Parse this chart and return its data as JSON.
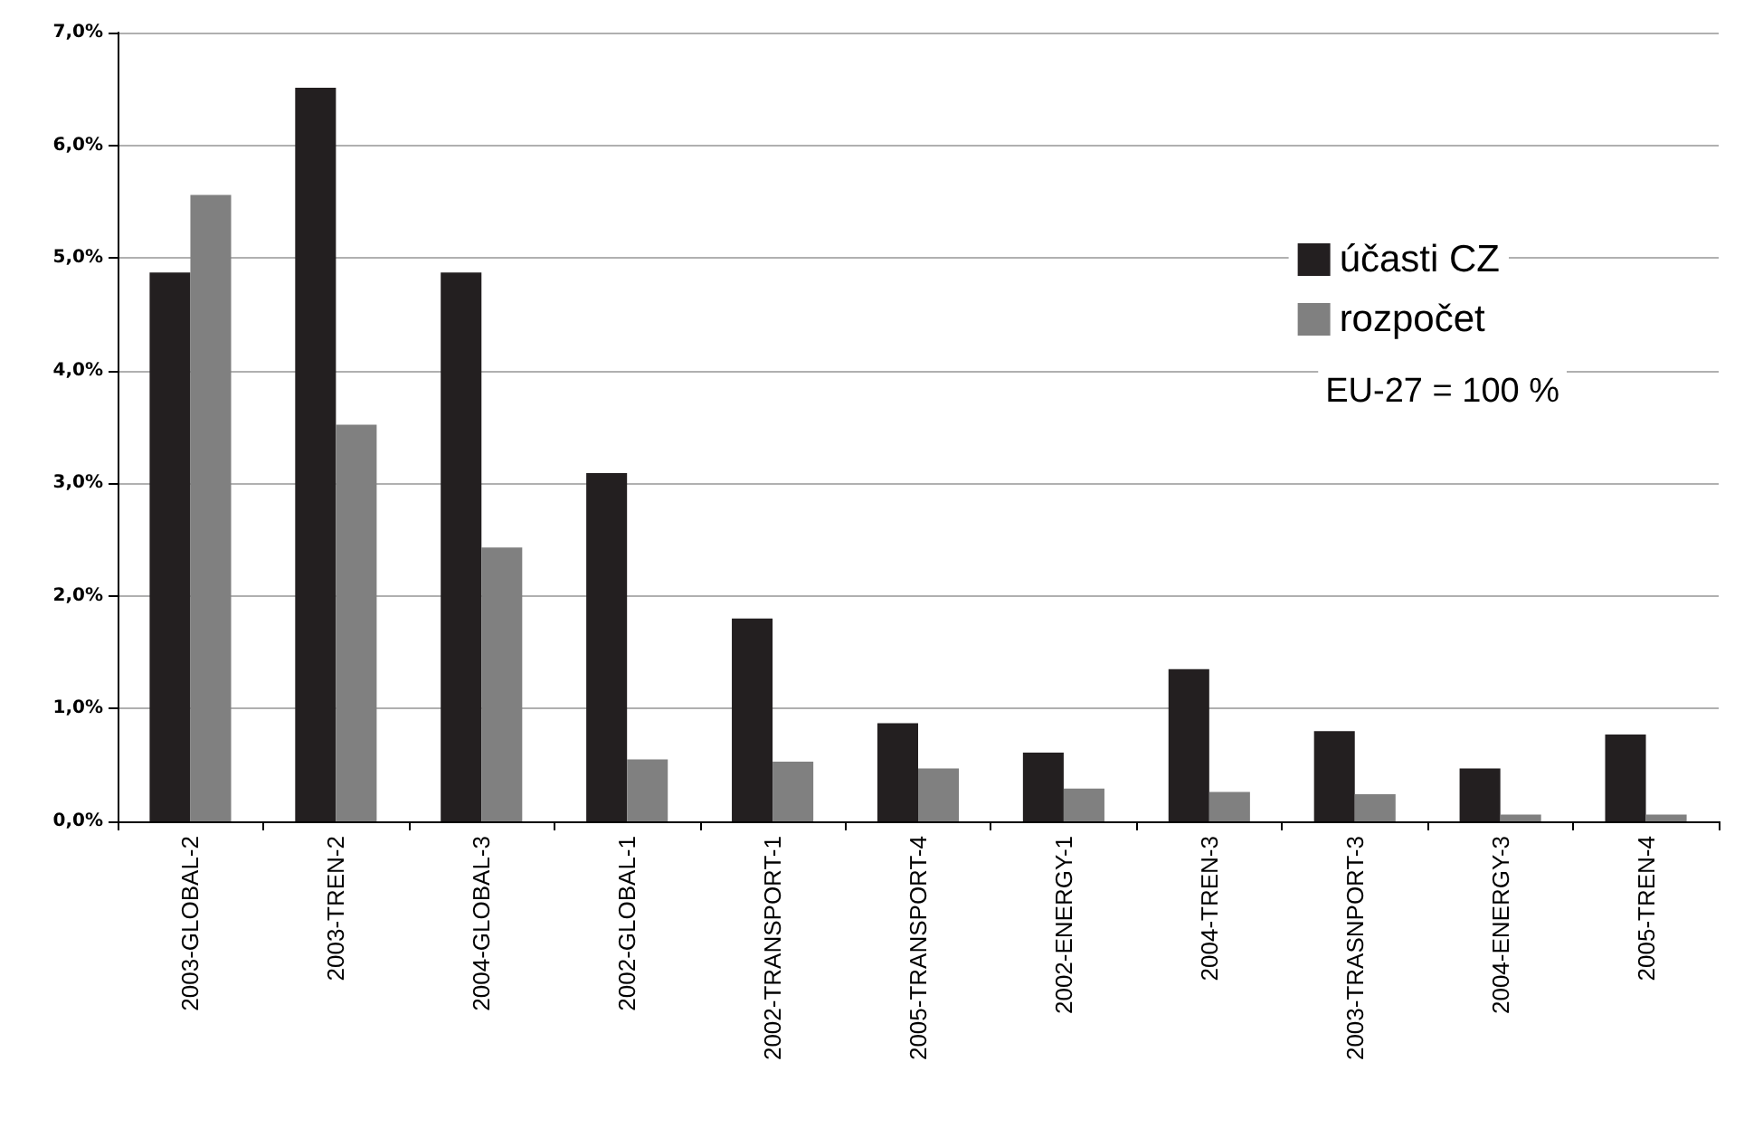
{
  "chart_data": {
    "type": "bar",
    "categories": [
      "2003-GLOBAL-2",
      "2003-TREN-2",
      "2004-GLOBAL-3",
      "2002-GLOBAL-1",
      "2002-TRANSPORT-1",
      "2005-TRANSPORT-4",
      "2002-ENERGY-1",
      "2004-TREN-3",
      "2003-TRASNPORT-3",
      "2004-ENERGY-3",
      "2005-TREN-4"
    ],
    "series": [
      {
        "name": "účasti CZ",
        "color": "#231f20",
        "values": [
          4.87,
          6.51,
          4.87,
          3.09,
          1.8,
          0.87,
          0.61,
          1.35,
          0.8,
          0.47,
          0.77
        ]
      },
      {
        "name": "rozpočet",
        "color": "#808080",
        "values": [
          5.56,
          3.52,
          2.43,
          0.55,
          0.53,
          0.47,
          0.29,
          0.26,
          0.24,
          0.06,
          0.06
        ]
      }
    ],
    "ylim": [
      0,
      7
    ],
    "yticks": [
      {
        "value": 0,
        "label": "0,0%"
      },
      {
        "value": 1,
        "label": "1,0%"
      },
      {
        "value": 2,
        "label": "2,0%"
      },
      {
        "value": 3,
        "label": "3,0%"
      },
      {
        "value": 4,
        "label": "4,0%"
      },
      {
        "value": 5,
        "label": "5,0%"
      },
      {
        "value": 6,
        "label": "6,0%"
      },
      {
        "value": 7,
        "label": "7,0%"
      }
    ],
    "grid": "y",
    "legend": "top right",
    "annotations": [
      "EU-27 = 100 %"
    ]
  }
}
